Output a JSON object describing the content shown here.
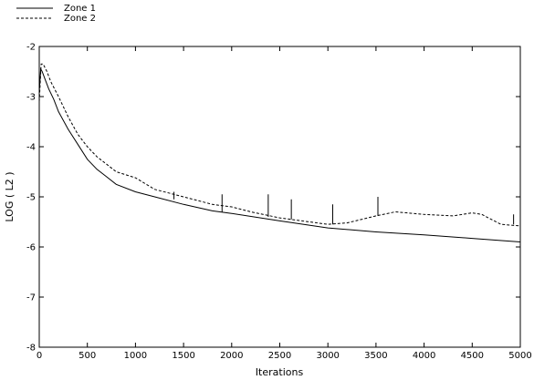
{
  "chart_data": {
    "type": "line",
    "title": "",
    "xlabel": "Iterations",
    "ylabel": "LOG ( L2 )",
    "xlim": [
      0,
      5000
    ],
    "ylim": [
      -8,
      -2
    ],
    "xticks": [
      "0",
      "500",
      "1000",
      "1500",
      "2000",
      "2500",
      "3000",
      "3500",
      "4000",
      "4500",
      "5000"
    ],
    "yticks": [
      "-2",
      "-3",
      "-4",
      "-5",
      "-6",
      "-7",
      "-8"
    ],
    "grid": false,
    "legend_position": "top-left",
    "series": [
      {
        "name": "Zone  1",
        "style": "solid",
        "color": "#000000",
        "x": [
          0,
          15,
          30,
          60,
          100,
          150,
          200,
          300,
          400,
          500,
          600,
          700,
          800,
          1000,
          1200,
          1500,
          1800,
          2000,
          2500,
          3000,
          3500,
          4000,
          4500,
          5000
        ],
        "y": [
          -2.9,
          -2.45,
          -2.5,
          -2.65,
          -2.85,
          -3.05,
          -3.3,
          -3.65,
          -3.95,
          -4.25,
          -4.45,
          -4.6,
          -4.75,
          -4.9,
          -5.0,
          -5.15,
          -5.28,
          -5.33,
          -5.48,
          -5.62,
          -5.7,
          -5.76,
          -5.83,
          -5.9
        ]
      },
      {
        "name": "Zone  2",
        "style": "dashed",
        "color": "#000000",
        "x": [
          0,
          20,
          40,
          80,
          120,
          200,
          300,
          400,
          500,
          600,
          700,
          800,
          1000,
          1200,
          1500,
          1800,
          2000,
          2200,
          2500,
          3000,
          3200,
          3500,
          3700,
          4000,
          4300,
          4500,
          4600,
          4700,
          4800,
          5000
        ],
        "y": [
          -3.1,
          -2.35,
          -2.35,
          -2.5,
          -2.7,
          -3.0,
          -3.4,
          -3.75,
          -4.0,
          -4.2,
          -4.35,
          -4.5,
          -4.62,
          -4.85,
          -5.0,
          -5.15,
          -5.2,
          -5.3,
          -5.42,
          -5.55,
          -5.52,
          -5.38,
          -5.3,
          -5.35,
          -5.38,
          -5.32,
          -5.35,
          -5.45,
          -5.55,
          -5.58
        ]
      }
    ],
    "spikes": [
      {
        "x": 1400,
        "y_from": -5.05,
        "y_to": -4.9
      },
      {
        "x": 1900,
        "y_from": -5.3,
        "y_to": -4.95
      },
      {
        "x": 2380,
        "y_from": -5.4,
        "y_to": -4.95
      },
      {
        "x": 2620,
        "y_from": -5.45,
        "y_to": -5.05
      },
      {
        "x": 3050,
        "y_from": -5.55,
        "y_to": -5.15
      },
      {
        "x": 3520,
        "y_from": -5.38,
        "y_to": -5.0
      },
      {
        "x": 4930,
        "y_from": -5.55,
        "y_to": -5.35
      }
    ]
  }
}
